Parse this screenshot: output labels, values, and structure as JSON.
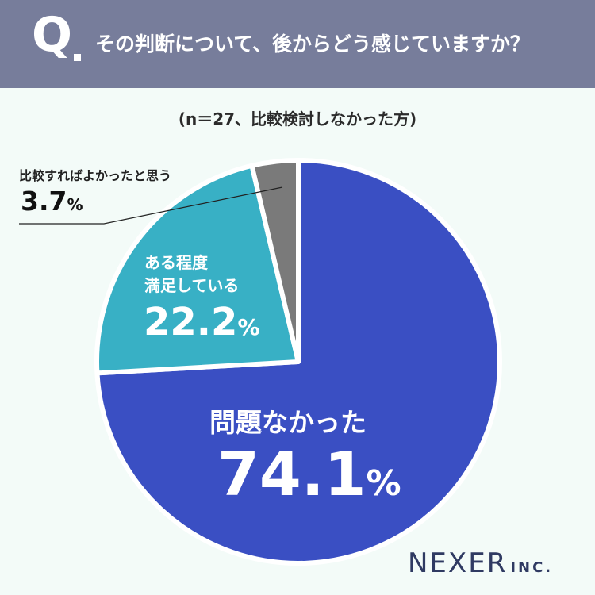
{
  "header": {
    "q_mark": "Q",
    "question": "その判断について、後からどう感じていますか？"
  },
  "subtitle": "(n＝27、比較検討しなかった方)",
  "chart_data": {
    "type": "pie",
    "title": "その判断について、後からどう感じていますか？",
    "subtitle": "(n＝27、比較検討しなかった方)",
    "slices": [
      {
        "label": "問題なかった",
        "value": 74.1,
        "color": "#3a4fc3"
      },
      {
        "label": "ある程度満足している",
        "value": 22.2,
        "color": "#38b0c5"
      },
      {
        "label": "比較すればよかったと思う",
        "value": 3.7,
        "color": "#7a7a7a"
      }
    ]
  },
  "labels": {
    "big_cat": "問題なかった",
    "big_num": "74.1",
    "mid_cat_line1": "ある程度",
    "mid_cat_line2": "満足している",
    "mid_num": "22.2",
    "small_cat": "比較すればよかったと思う",
    "small_num": "3.7",
    "pct_sign": "%"
  },
  "logo": {
    "name": "NEXER",
    "suffix": "INC."
  }
}
